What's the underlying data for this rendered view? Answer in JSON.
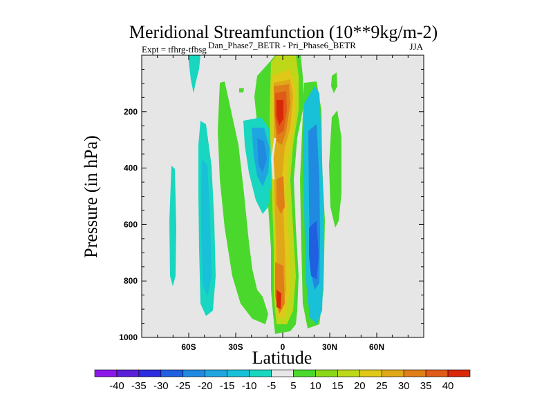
{
  "chart_data": {
    "type": "contour",
    "title": "Meridional Streamfunction (10**9kg/m-2)",
    "left_string": "Expt = tfhrg-tfbsg",
    "center_string": "Dan_Phase7_BETR - Pri_Phase6_BETR",
    "right_string": "JJA",
    "xlabel": "Latitude",
    "ylabel": "Pressure (in hPa)",
    "xlim": [
      -90,
      90
    ],
    "ylim": [
      1000,
      0
    ],
    "x_ticks": [
      {
        "value": -60,
        "label": "60S"
      },
      {
        "value": -30,
        "label": "30S"
      },
      {
        "value": 0,
        "label": "0"
      },
      {
        "value": 30,
        "label": "30N"
      },
      {
        "value": 60,
        "label": "60N"
      }
    ],
    "y_ticks": [
      {
        "value": 200,
        "label": "200"
      },
      {
        "value": 400,
        "label": "400"
      },
      {
        "value": 600,
        "label": "600"
      },
      {
        "value": 800,
        "label": "800"
      },
      {
        "value": 1000,
        "label": "1000"
      }
    ],
    "contour_levels": [
      -40,
      -35,
      -30,
      -25,
      -20,
      -15,
      -10,
      -5,
      5,
      10,
      15,
      20,
      25,
      30,
      35,
      40
    ],
    "colorbar_colors": [
      "#8b18e8",
      "#5a1ed8",
      "#2c2ce0",
      "#1f5fe0",
      "#1f8ae0",
      "#1fa6e0",
      "#18c0d8",
      "#18d6c0",
      "#e6e6e6",
      "#4bd82c",
      "#8ad818",
      "#bcd818",
      "#e0c818",
      "#e0a818",
      "#e07e18",
      "#e05a18",
      "#d82808"
    ],
    "background_color": "#e6e6e6",
    "features": [
      {
        "name": "equatorial positive cell",
        "lat_range": [
          -2,
          10
        ],
        "p_range": [
          0,
          1000
        ],
        "peak_value": 40,
        "peak_p": [
          150,
          250
        ]
      },
      {
        "name": "lower equatorial positive maximum",
        "lat_range": [
          -2,
          6
        ],
        "p_range": [
          750,
          950
        ],
        "peak_value": 35
      },
      {
        "name": "northern negative cell",
        "lat_range": [
          12,
          26
        ],
        "p_range": [
          100,
          980
        ],
        "peak_value": -30,
        "peak_p": [
          650,
          800
        ]
      },
      {
        "name": "southern negative cell",
        "lat_range": [
          -20,
          -5
        ],
        "p_range": [
          200,
          700
        ],
        "peak_value": -20,
        "peak_p": [
          300,
          400
        ]
      },
      {
        "name": "southern hemisphere weak negative band",
        "lat_range": [
          -52,
          -38
        ],
        "p_range": [
          220,
          920
        ],
        "peak_value": -10
      },
      {
        "name": "northern weak positive band",
        "lat_range": [
          30,
          38
        ],
        "p_range": [
          230,
          560
        ],
        "peak_value": 5
      },
      {
        "name": "southern weak positive band",
        "lat_range": [
          -42,
          -20
        ],
        "p_range": [
          100,
          940
        ],
        "peak_value": 5
      }
    ]
  }
}
